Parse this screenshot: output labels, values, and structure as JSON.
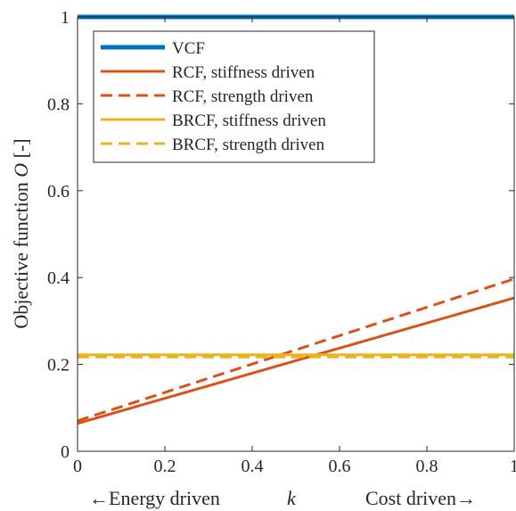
{
  "chart_data": {
    "type": "line",
    "xlabel": "k",
    "xlabel_left": "←Energy driven",
    "xlabel_right": "Cost driven→",
    "ylabel_main": "Objective function ",
    "ylabel_symbol": "O",
    "ylabel_unit": " [-]",
    "xlim": [
      0,
      1
    ],
    "ylim": [
      0,
      1
    ],
    "x_ticks": [
      "0",
      "0.2",
      "0.4",
      "0.6",
      "0.8",
      "1"
    ],
    "y_ticks": [
      "0",
      "0.2",
      "0.4",
      "0.6",
      "0.8",
      "1"
    ],
    "x_tick_values": [
      0,
      0.2,
      0.4,
      0.6,
      0.8,
      1
    ],
    "y_tick_values": [
      0,
      0.2,
      0.4,
      0.6,
      0.8,
      1
    ],
    "grid": false,
    "legend_position": "top-left",
    "series": [
      {
        "name": "VCF",
        "x": [
          0,
          1
        ],
        "y": [
          1.0,
          1.0
        ],
        "color": "#0072BD",
        "dash": "solid",
        "width": "thick"
      },
      {
        "name": "RCF, stiffness driven",
        "x": [
          0,
          1
        ],
        "y": [
          0.064,
          0.353
        ],
        "color": "#D95319",
        "dash": "solid",
        "width": "normal"
      },
      {
        "name": "RCF, strength driven",
        "x": [
          0,
          1
        ],
        "y": [
          0.07,
          0.397
        ],
        "color": "#D95319",
        "dash": "dashed",
        "width": "normal"
      },
      {
        "name": "BRCF, stiffness driven",
        "x": [
          0,
          1
        ],
        "y": [
          0.222,
          0.222
        ],
        "color": "#EDB120",
        "dash": "solid",
        "width": "normal"
      },
      {
        "name": "BRCF, strength driven",
        "x": [
          0,
          1
        ],
        "y": [
          0.217,
          0.217
        ],
        "color": "#EDB120",
        "dash": "dashed",
        "width": "normal"
      }
    ]
  }
}
